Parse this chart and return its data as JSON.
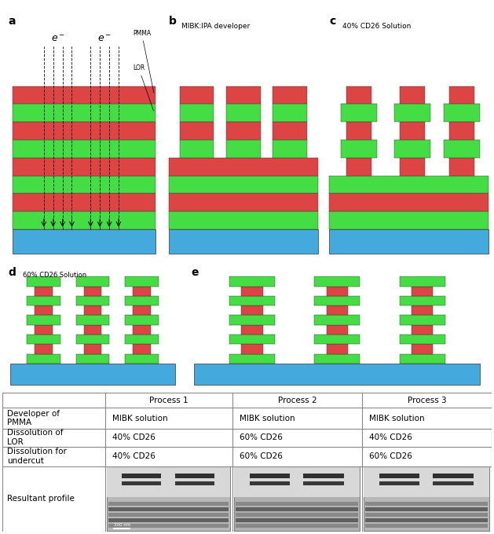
{
  "fig_width": 6.29,
  "fig_height": 6.8,
  "dpi": 100,
  "GREEN": "#44dd44",
  "RED": "#dd4444",
  "BLUE": "#44aadd",
  "panel_a_bg": "#ffffff",
  "panel_b_bg": "#f2c4b4",
  "panel_c_bg": "#d4d4d4",
  "panel_d_bg": "#9898a8",
  "panel_e_bg": "#ffffff",
  "table_border": "#888888",
  "table_bg": "#ffffff",
  "col_headers": [
    "",
    "Process 1",
    "Process 2",
    "Process 3"
  ],
  "row0": [
    "Developer of\nPMMA",
    "MIBK solution",
    "MIBK solution",
    "MIBK solution"
  ],
  "row1": [
    "Dissolution of\nLOR",
    "40% CD26",
    "60% CD26",
    "40% CD26"
  ],
  "row2": [
    "Dissolution for\nundercut",
    "40% CD26",
    "60% CD26",
    "60% CD26"
  ],
  "row3": [
    "Resultant profile",
    "",
    "",
    ""
  ]
}
